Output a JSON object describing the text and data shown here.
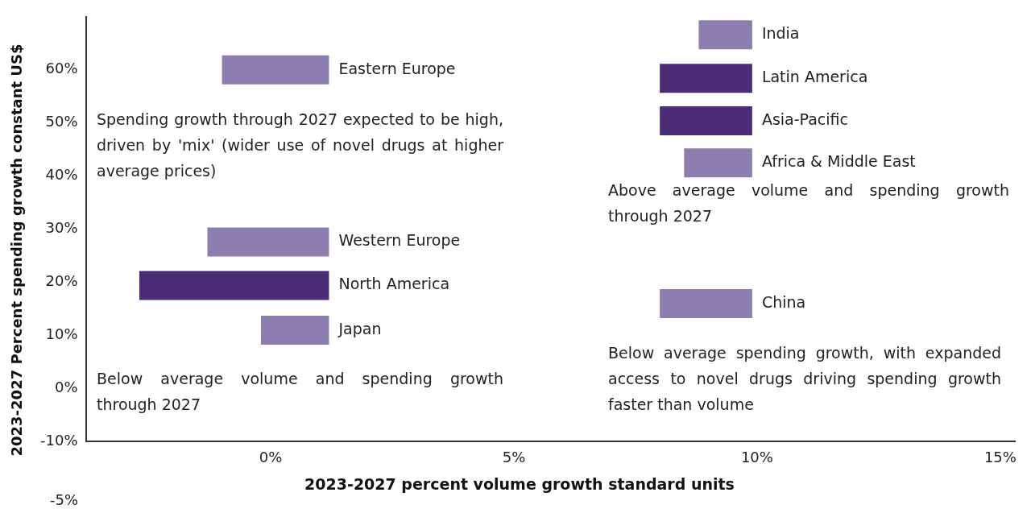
{
  "chart_data": {
    "type": "line",
    "xlabel": "2023-2027 percent volume growth standard units",
    "ylabel": "2023-2027 Percent spending growth constant US$",
    "series": [
      {
        "name": "Eastern Europe",
        "color": "#8c7fb0",
        "x": [
          -1.0,
          1.2
        ],
        "values": [
          60,
          60
        ]
      },
      {
        "name": "Western Europe",
        "color": "#8c7fb0",
        "x": [
          -1.3,
          1.2
        ],
        "values": [
          27.6,
          27.6
        ]
      },
      {
        "name": "North America",
        "color": "#4b2c77",
        "x": [
          -2.7,
          1.2
        ],
        "values": [
          19.4,
          19.4
        ]
      },
      {
        "name": "Japan",
        "color": "#8c7fb0",
        "x": [
          -0.2,
          1.2
        ],
        "values": [
          11,
          11
        ]
      },
      {
        "name": "India",
        "color": "#8c7fb0",
        "x": [
          8.8,
          9.9
        ],
        "values": [
          66.6,
          66.6
        ]
      },
      {
        "name": "Latin America",
        "color": "#4b2c77",
        "x": [
          8.0,
          9.9
        ],
        "values": [
          58.4,
          58.4
        ]
      },
      {
        "name": "Asia-Pacific",
        "color": "#4b2c77",
        "x": [
          8.0,
          9.9
        ],
        "values": [
          50.4,
          50.4
        ]
      },
      {
        "name": "Africa & Middle East",
        "color": "#8c7fb0",
        "x": [
          8.5,
          9.9
        ],
        "values": [
          42.5,
          42.5
        ]
      },
      {
        "name": "China",
        "color": "#8c7fb0",
        "x": [
          8.0,
          9.9
        ],
        "values": [
          16,
          16
        ]
      }
    ],
    "xlim": [
      -3.8,
      15.3
    ],
    "xticks": [
      {
        "value": 0,
        "label": "0%"
      },
      {
        "value": 5,
        "label": "5%"
      },
      {
        "value": 10,
        "label": "10%"
      },
      {
        "value": 15,
        "label": "15%"
      }
    ],
    "ylim": [
      -10,
      70
    ],
    "yticks": [
      {
        "value": -10,
        "label": "-10%"
      },
      {
        "value": 0,
        "label": "0%"
      },
      {
        "value": 10,
        "label": "10%"
      },
      {
        "value": 20,
        "label": "20%"
      },
      {
        "value": 30,
        "label": "30%"
      },
      {
        "value": 40,
        "label": "40%"
      },
      {
        "value": 50,
        "label": "50%"
      },
      {
        "value": 60,
        "label": "60%"
      }
    ],
    "grid": false,
    "legend": false,
    "marker": "none",
    "line_style": "solid",
    "annotations": [
      "Spending growth through 2027 expected to be high, driven by 'mix' (wider use of novel drugs at higher average prices)",
      "Above average volume and spending growth through 2027",
      "Below average volume and spending growth through 2027",
      "Below average spending growth, with expanded access to novel drugs driving spending growth faster than volume",
      "-5%"
    ]
  }
}
